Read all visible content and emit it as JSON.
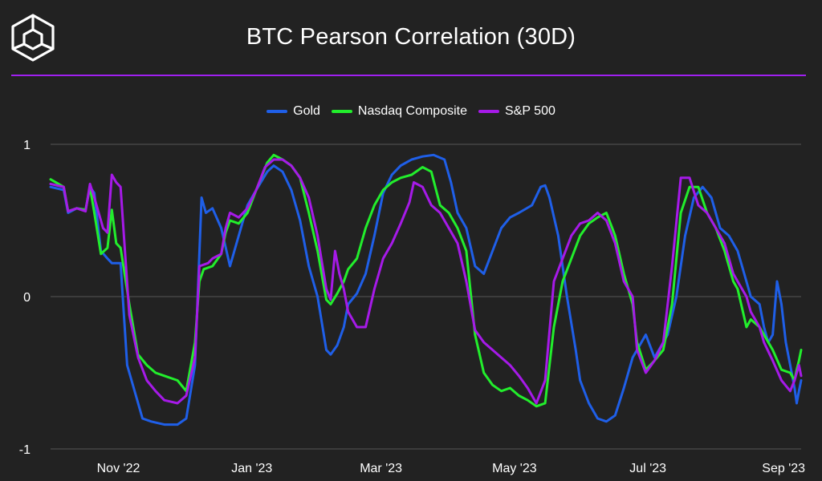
{
  "header": {
    "title": "BTC Pearson Correlation (30D)"
  },
  "colors": {
    "background": "#222222",
    "divider": "#a020f0",
    "grid": "#555555",
    "text": "#ffffff"
  },
  "chart_data": {
    "type": "line",
    "title": "BTC Pearson Correlation (30D)",
    "xlabel": "",
    "ylabel": "",
    "ylim": [
      -1,
      1
    ],
    "yticks": [
      {
        "value": 1,
        "label": "1"
      },
      {
        "value": 0,
        "label": "0"
      },
      {
        "value": -1,
        "label": "-1"
      }
    ],
    "xrange_days": [
      0,
      343
    ],
    "xticks": [
      {
        "day": 31,
        "label": "Nov '22"
      },
      {
        "day": 92,
        "label": "Jan '23"
      },
      {
        "day": 151,
        "label": "Mar '23"
      },
      {
        "day": 212,
        "label": "May '23"
      },
      {
        "day": 273,
        "label": "Jul '23"
      },
      {
        "day": 335,
        "label": "Sep '23"
      }
    ],
    "legend_position": "top-center",
    "series": [
      {
        "name": "Gold",
        "color": "#1f5fe8",
        "points": [
          [
            0,
            0.72
          ],
          [
            6,
            0.7
          ],
          [
            8,
            0.55
          ],
          [
            12,
            0.58
          ],
          [
            16,
            0.57
          ],
          [
            18,
            0.72
          ],
          [
            20,
            0.68
          ],
          [
            23,
            0.3
          ],
          [
            26,
            0.25
          ],
          [
            28,
            0.22
          ],
          [
            32,
            0.22
          ],
          [
            35,
            -0.45
          ],
          [
            38,
            -0.6
          ],
          [
            42,
            -0.8
          ],
          [
            46,
            -0.82
          ],
          [
            52,
            -0.84
          ],
          [
            58,
            -0.84
          ],
          [
            62,
            -0.8
          ],
          [
            66,
            -0.45
          ],
          [
            69,
            0.65
          ],
          [
            71,
            0.55
          ],
          [
            74,
            0.58
          ],
          [
            78,
            0.45
          ],
          [
            82,
            0.2
          ],
          [
            86,
            0.4
          ],
          [
            90,
            0.6
          ],
          [
            94,
            0.7
          ],
          [
            99,
            0.82
          ],
          [
            102,
            0.86
          ],
          [
            106,
            0.82
          ],
          [
            110,
            0.7
          ],
          [
            114,
            0.5
          ],
          [
            118,
            0.2
          ],
          [
            122,
            0.0
          ],
          [
            126,
            -0.35
          ],
          [
            128,
            -0.38
          ],
          [
            131,
            -0.32
          ],
          [
            134,
            -0.2
          ],
          [
            136,
            -0.05
          ],
          [
            140,
            0.02
          ],
          [
            144,
            0.15
          ],
          [
            148,
            0.4
          ],
          [
            152,
            0.68
          ],
          [
            156,
            0.8
          ],
          [
            160,
            0.86
          ],
          [
            165,
            0.9
          ],
          [
            170,
            0.92
          ],
          [
            175,
            0.93
          ],
          [
            180,
            0.9
          ],
          [
            183,
            0.75
          ],
          [
            186,
            0.55
          ],
          [
            190,
            0.45
          ],
          [
            194,
            0.2
          ],
          [
            198,
            0.15
          ],
          [
            202,
            0.3
          ],
          [
            206,
            0.45
          ],
          [
            210,
            0.52
          ],
          [
            214,
            0.55
          ],
          [
            220,
            0.6
          ],
          [
            224,
            0.72
          ],
          [
            226,
            0.73
          ],
          [
            228,
            0.65
          ],
          [
            232,
            0.4
          ],
          [
            236,
            0.0
          ],
          [
            240,
            -0.35
          ],
          [
            242,
            -0.55
          ],
          [
            246,
            -0.7
          ],
          [
            250,
            -0.8
          ],
          [
            254,
            -0.82
          ],
          [
            258,
            -0.78
          ],
          [
            262,
            -0.6
          ],
          [
            266,
            -0.4
          ],
          [
            268,
            -0.35
          ],
          [
            272,
            -0.25
          ],
          [
            276,
            -0.4
          ],
          [
            278,
            -0.35
          ],
          [
            282,
            -0.25
          ],
          [
            286,
            0.0
          ],
          [
            290,
            0.4
          ],
          [
            294,
            0.65
          ],
          [
            298,
            0.72
          ],
          [
            302,
            0.65
          ],
          [
            306,
            0.45
          ],
          [
            310,
            0.4
          ],
          [
            314,
            0.3
          ],
          [
            316,
            0.2
          ],
          [
            320,
            0.0
          ],
          [
            324,
            -0.05
          ],
          [
            326,
            -0.2
          ],
          [
            328,
            -0.3
          ],
          [
            330,
            -0.25
          ],
          [
            332,
            0.1
          ],
          [
            334,
            -0.05
          ],
          [
            336,
            -0.3
          ],
          [
            338,
            -0.45
          ],
          [
            340,
            -0.6
          ],
          [
            341,
            -0.7
          ],
          [
            342,
            -0.62
          ],
          [
            343,
            -0.55
          ]
        ]
      },
      {
        "name": "Nasdaq Composite",
        "color": "#22ee2c",
        "points": [
          [
            0,
            0.77
          ],
          [
            6,
            0.72
          ],
          [
            8,
            0.56
          ],
          [
            12,
            0.58
          ],
          [
            16,
            0.57
          ],
          [
            18,
            0.72
          ],
          [
            20,
            0.55
          ],
          [
            23,
            0.28
          ],
          [
            26,
            0.32
          ],
          [
            28,
            0.57
          ],
          [
            30,
            0.35
          ],
          [
            32,
            0.32
          ],
          [
            36,
            -0.05
          ],
          [
            40,
            -0.38
          ],
          [
            44,
            -0.45
          ],
          [
            48,
            -0.5
          ],
          [
            52,
            -0.52
          ],
          [
            58,
            -0.55
          ],
          [
            62,
            -0.62
          ],
          [
            66,
            -0.3
          ],
          [
            68,
            0.1
          ],
          [
            70,
            0.18
          ],
          [
            74,
            0.2
          ],
          [
            78,
            0.28
          ],
          [
            80,
            0.42
          ],
          [
            82,
            0.5
          ],
          [
            86,
            0.48
          ],
          [
            90,
            0.55
          ],
          [
            94,
            0.7
          ],
          [
            99,
            0.88
          ],
          [
            102,
            0.93
          ],
          [
            106,
            0.9
          ],
          [
            110,
            0.86
          ],
          [
            114,
            0.78
          ],
          [
            118,
            0.55
          ],
          [
            122,
            0.3
          ],
          [
            126,
            -0.02
          ],
          [
            128,
            -0.05
          ],
          [
            131,
            0.02
          ],
          [
            134,
            0.1
          ],
          [
            136,
            0.18
          ],
          [
            140,
            0.25
          ],
          [
            144,
            0.45
          ],
          [
            148,
            0.6
          ],
          [
            152,
            0.7
          ],
          [
            156,
            0.75
          ],
          [
            160,
            0.78
          ],
          [
            165,
            0.8
          ],
          [
            170,
            0.85
          ],
          [
            174,
            0.82
          ],
          [
            178,
            0.6
          ],
          [
            182,
            0.55
          ],
          [
            186,
            0.45
          ],
          [
            190,
            0.3
          ],
          [
            194,
            -0.25
          ],
          [
            198,
            -0.5
          ],
          [
            202,
            -0.58
          ],
          [
            206,
            -0.62
          ],
          [
            210,
            -0.6
          ],
          [
            214,
            -0.65
          ],
          [
            218,
            -0.68
          ],
          [
            222,
            -0.72
          ],
          [
            226,
            -0.7
          ],
          [
            230,
            -0.2
          ],
          [
            234,
            0.1
          ],
          [
            238,
            0.25
          ],
          [
            242,
            0.4
          ],
          [
            246,
            0.48
          ],
          [
            250,
            0.52
          ],
          [
            254,
            0.55
          ],
          [
            258,
            0.4
          ],
          [
            262,
            0.15
          ],
          [
            266,
            -0.05
          ],
          [
            268,
            -0.3
          ],
          [
            272,
            -0.48
          ],
          [
            276,
            -0.42
          ],
          [
            280,
            -0.35
          ],
          [
            284,
            -0.05
          ],
          [
            288,
            0.55
          ],
          [
            292,
            0.72
          ],
          [
            296,
            0.72
          ],
          [
            300,
            0.55
          ],
          [
            304,
            0.45
          ],
          [
            308,
            0.3
          ],
          [
            312,
            0.1
          ],
          [
            314,
            0.05
          ],
          [
            318,
            -0.2
          ],
          [
            320,
            -0.15
          ],
          [
            324,
            -0.2
          ],
          [
            326,
            -0.25
          ],
          [
            330,
            -0.35
          ],
          [
            334,
            -0.48
          ],
          [
            338,
            -0.5
          ],
          [
            340,
            -0.55
          ],
          [
            341,
            -0.48
          ],
          [
            342,
            -0.42
          ],
          [
            343,
            -0.35
          ]
        ]
      },
      {
        "name": "S&P 500",
        "color": "#a61ae8",
        "points": [
          [
            0,
            0.74
          ],
          [
            6,
            0.72
          ],
          [
            8,
            0.56
          ],
          [
            12,
            0.58
          ],
          [
            16,
            0.56
          ],
          [
            18,
            0.74
          ],
          [
            20,
            0.65
          ],
          [
            24,
            0.45
          ],
          [
            26,
            0.42
          ],
          [
            28,
            0.8
          ],
          [
            30,
            0.75
          ],
          [
            32,
            0.72
          ],
          [
            36,
            -0.12
          ],
          [
            40,
            -0.4
          ],
          [
            44,
            -0.55
          ],
          [
            48,
            -0.62
          ],
          [
            52,
            -0.68
          ],
          [
            58,
            -0.7
          ],
          [
            62,
            -0.65
          ],
          [
            66,
            -0.4
          ],
          [
            68,
            0.2
          ],
          [
            72,
            0.22
          ],
          [
            74,
            0.25
          ],
          [
            78,
            0.28
          ],
          [
            80,
            0.45
          ],
          [
            82,
            0.55
          ],
          [
            86,
            0.52
          ],
          [
            90,
            0.58
          ],
          [
            94,
            0.7
          ],
          [
            98,
            0.85
          ],
          [
            102,
            0.9
          ],
          [
            106,
            0.9
          ],
          [
            110,
            0.86
          ],
          [
            114,
            0.78
          ],
          [
            118,
            0.65
          ],
          [
            122,
            0.4
          ],
          [
            126,
            0.05
          ],
          [
            128,
            -0.02
          ],
          [
            130,
            0.3
          ],
          [
            132,
            0.15
          ],
          [
            134,
            0.05
          ],
          [
            136,
            -0.1
          ],
          [
            140,
            -0.2
          ],
          [
            144,
            -0.2
          ],
          [
            148,
            0.05
          ],
          [
            152,
            0.25
          ],
          [
            156,
            0.35
          ],
          [
            160,
            0.48
          ],
          [
            164,
            0.62
          ],
          [
            166,
            0.75
          ],
          [
            170,
            0.72
          ],
          [
            174,
            0.6
          ],
          [
            178,
            0.55
          ],
          [
            182,
            0.45
          ],
          [
            186,
            0.35
          ],
          [
            190,
            0.1
          ],
          [
            194,
            -0.22
          ],
          [
            198,
            -0.3
          ],
          [
            202,
            -0.35
          ],
          [
            206,
            -0.4
          ],
          [
            210,
            -0.45
          ],
          [
            214,
            -0.52
          ],
          [
            218,
            -0.6
          ],
          [
            222,
            -0.7
          ],
          [
            226,
            -0.55
          ],
          [
            230,
            0.1
          ],
          [
            234,
            0.25
          ],
          [
            238,
            0.4
          ],
          [
            242,
            0.48
          ],
          [
            246,
            0.5
          ],
          [
            250,
            0.55
          ],
          [
            254,
            0.5
          ],
          [
            258,
            0.35
          ],
          [
            262,
            0.1
          ],
          [
            266,
            0.0
          ],
          [
            268,
            -0.35
          ],
          [
            272,
            -0.5
          ],
          [
            276,
            -0.42
          ],
          [
            280,
            -0.3
          ],
          [
            284,
            0.2
          ],
          [
            288,
            0.78
          ],
          [
            292,
            0.78
          ],
          [
            296,
            0.6
          ],
          [
            300,
            0.55
          ],
          [
            304,
            0.45
          ],
          [
            308,
            0.35
          ],
          [
            312,
            0.15
          ],
          [
            314,
            0.1
          ],
          [
            318,
            0.0
          ],
          [
            320,
            -0.1
          ],
          [
            324,
            -0.2
          ],
          [
            326,
            -0.3
          ],
          [
            330,
            -0.42
          ],
          [
            334,
            -0.55
          ],
          [
            338,
            -0.62
          ],
          [
            340,
            -0.55
          ],
          [
            341,
            -0.5
          ],
          [
            342,
            -0.45
          ],
          [
            343,
            -0.52
          ]
        ]
      }
    ]
  }
}
